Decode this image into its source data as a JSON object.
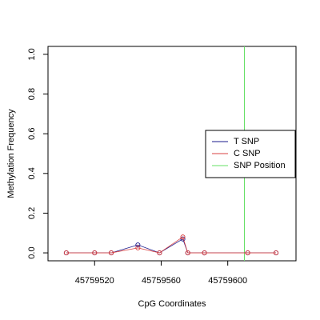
{
  "chart_data": {
    "type": "line",
    "xlabel": "CpG Coordinates",
    "ylabel": "Methylation Frequency",
    "x": [
      45759503,
      45759520,
      45759530,
      45759546,
      45759559,
      45759573,
      45759576,
      45759586,
      45759612,
      45759629
    ],
    "series": [
      {
        "name": "T SNP",
        "color": "#1a1a8c",
        "values": [
          0,
          0,
          0,
          0.04,
          0,
          0.07,
          0,
          0,
          0,
          0
        ]
      },
      {
        "name": "C SNP",
        "color": "#d94040",
        "values": [
          0,
          0,
          0,
          0.025,
          0,
          0.08,
          0,
          0,
          0,
          0
        ]
      }
    ],
    "vlines": [
      {
        "name": "SNP Position",
        "color": "#66e066",
        "x": 45759610
      }
    ],
    "xlim": [
      45759492,
      45759641
    ],
    "ylim": [
      -0.04,
      1.04
    ],
    "xticks": [
      45759520,
      45759560,
      45759600
    ],
    "yticks": [
      {
        "value": 0,
        "label": "0.0"
      },
      {
        "value": 0.2,
        "label": "0.2"
      },
      {
        "value": 0.4,
        "label": "0.4"
      },
      {
        "value": 0.6,
        "label": "0.6"
      },
      {
        "value": 0.8,
        "label": "0.8"
      },
      {
        "value": 1,
        "label": "1.0"
      }
    ],
    "legend": "right"
  }
}
